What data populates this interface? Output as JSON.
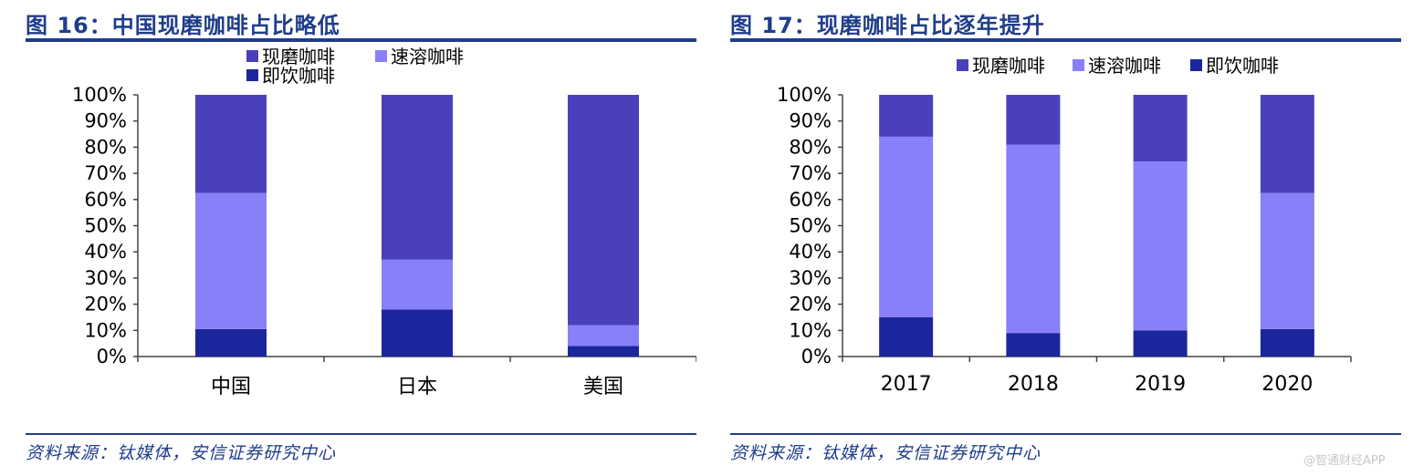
{
  "chart_data": [
    {
      "type": "bar",
      "stacked": true,
      "title": "图 16：中国现磨咖啡占比略低",
      "categories": [
        "中国",
        "日本",
        "美国"
      ],
      "series": [
        {
          "name": "即饮咖啡",
          "values": [
            10.5,
            18,
            4
          ],
          "color": "#1b269c"
        },
        {
          "name": "速溶咖啡",
          "values": [
            52,
            19,
            8
          ],
          "color": "#8880f8"
        },
        {
          "name": "现磨咖啡",
          "values": [
            37.5,
            63,
            88
          ],
          "color": "#4a40bc"
        }
      ],
      "legend_order": [
        "现磨咖啡",
        "速溶咖啡",
        "即饮咖啡"
      ],
      "ylim": [
        0,
        100
      ],
      "y_ticks": [
        "0%",
        "10%",
        "20%",
        "30%",
        "40%",
        "50%",
        "60%",
        "70%",
        "80%",
        "90%",
        "100%"
      ],
      "xlabel": "",
      "ylabel": "",
      "legend_position": "top-left",
      "source": "资料来源：钛媒体，安信证券研究中心"
    },
    {
      "type": "bar",
      "stacked": true,
      "title": "图 17：现磨咖啡占比逐年提升",
      "categories": [
        "2017",
        "2018",
        "2019",
        "2020"
      ],
      "series": [
        {
          "name": "即饮咖啡",
          "values": [
            15,
            9,
            10,
            10.5
          ],
          "color": "#1b269c"
        },
        {
          "name": "速溶咖啡",
          "values": [
            69,
            72,
            64.5,
            52
          ],
          "color": "#8880f8"
        },
        {
          "name": "现磨咖啡",
          "values": [
            16,
            19,
            25.5,
            37.5
          ],
          "color": "#4a40bc"
        }
      ],
      "legend_order": [
        "现磨咖啡",
        "速溶咖啡",
        "即饮咖啡"
      ],
      "ylim": [
        0,
        100
      ],
      "y_ticks": [
        "0%",
        "10%",
        "20%",
        "30%",
        "40%",
        "50%",
        "60%",
        "70%",
        "80%",
        "90%",
        "100%"
      ],
      "xlabel": "",
      "ylabel": "",
      "legend_position": "top",
      "source": "资料来源：钛媒体，安信证券研究中心"
    }
  ],
  "watermark": "@智通财经APP"
}
